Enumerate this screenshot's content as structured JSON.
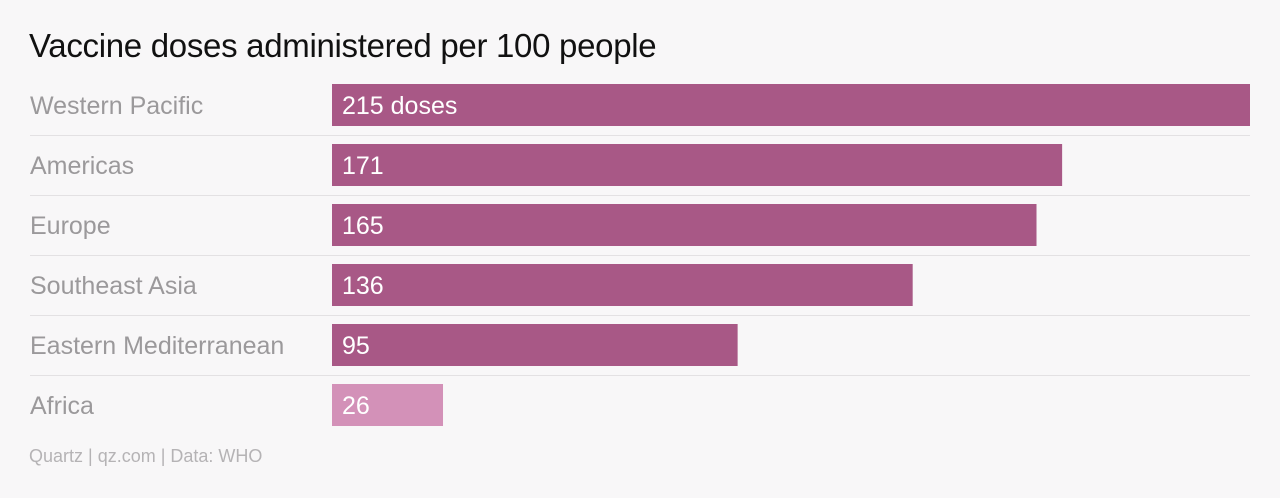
{
  "source_text": "Quartz | qz.com | Data: WHO",
  "colors": {
    "bar": "#a85886",
    "bar_highlight": "#d391b8",
    "category_label": "#9b999b",
    "value_label": "#ffffff",
    "row_divider": "#e3e1e3",
    "background": "#f8f7f8"
  },
  "chart_data": {
    "type": "bar",
    "orientation": "horizontal",
    "title": "Vaccine doses administered per 100 people",
    "categories": [
      "Western Pacific",
      "Americas",
      "Europe",
      "Southeast Asia",
      "Eastern Mediterranean",
      "Africa"
    ],
    "values": [
      215,
      171,
      165,
      136,
      95,
      26
    ],
    "value_labels": [
      "215 doses",
      "171",
      "165",
      "136",
      "95",
      "26"
    ],
    "highlight_index": 5,
    "xlim": [
      0,
      215
    ],
    "grid": false,
    "legend": "none"
  }
}
